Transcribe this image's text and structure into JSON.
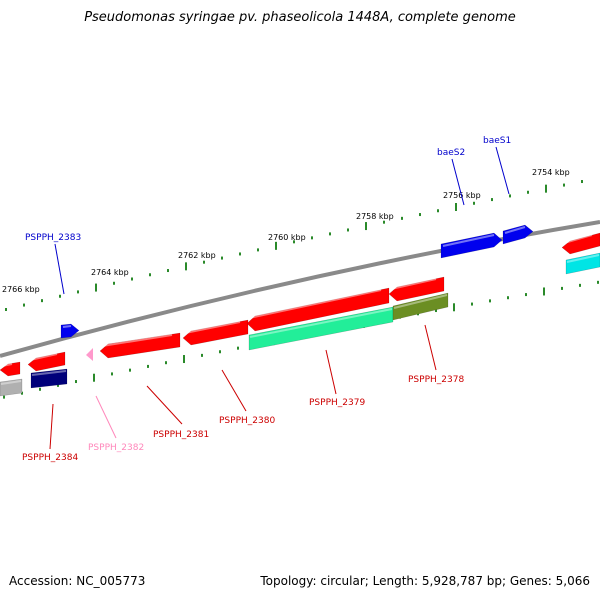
{
  "title": "Pseudomonas syringae pv. phaseolicola 1448A, complete genome",
  "accession": "Accession: NC_005773",
  "summary": "Topology: circular; Length: 5,928,787 bp; Genes: 5,066",
  "colors": {
    "backbone": "#8a8a8a",
    "tick": "#2a8a2a",
    "red": "#ff0000",
    "blue": "#0000ee",
    "navy": "#00007a",
    "pink": "#ff99cc",
    "mint": "#22ee99",
    "olive": "#6b8e23",
    "cyan": "#00e5e5",
    "grey": "#b0b0b0",
    "label_red": "#cc0000",
    "label_blue": "#0000cc",
    "label_pink": "#ff88bb"
  },
  "ticks": [
    "2754 kbp",
    "2756 kbp",
    "2758 kbp",
    "2760 kbp",
    "2762 kbp",
    "2764 kbp",
    "2766 kbp"
  ],
  "genes": [
    {
      "name": "baeS1",
      "color": "label_blue"
    },
    {
      "name": "baeS2",
      "color": "label_blue"
    },
    {
      "name": "PSPPH_2383",
      "color": "label_blue"
    },
    {
      "name": "PSPPH_2378",
      "color": "label_red"
    },
    {
      "name": "PSPPH_2379",
      "color": "label_red"
    },
    {
      "name": "PSPPH_2380",
      "color": "label_red"
    },
    {
      "name": "PSPPH_2381",
      "color": "label_red"
    },
    {
      "name": "PSPPH_2382",
      "color": "label_pink"
    },
    {
      "name": "PSPPH_2384",
      "color": "label_red"
    }
  ]
}
